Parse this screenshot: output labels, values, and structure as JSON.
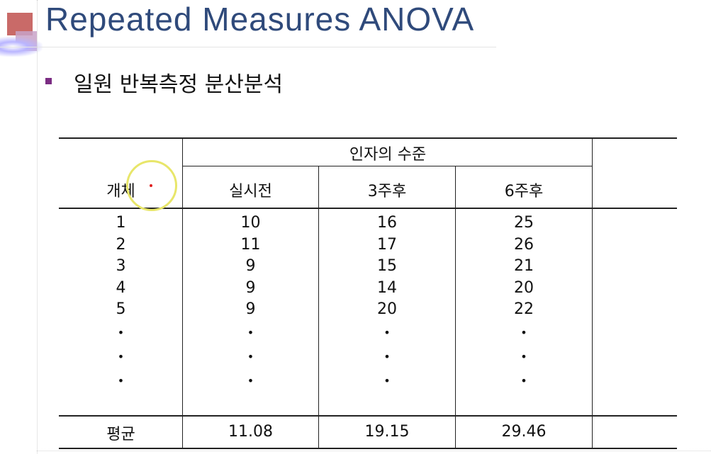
{
  "slide": {
    "title": "Repeated Measures ANOVA",
    "bullet": "일원 반복측정 분산분석"
  },
  "table": {
    "header_subject": "개체",
    "header_factor": "인자의 수준",
    "levels": [
      "실시전",
      "3주후",
      "6주후"
    ],
    "subjects": [
      "1",
      "2",
      "3",
      "4",
      "5"
    ],
    "columns": [
      [
        "10",
        "11",
        "9",
        "9",
        "9"
      ],
      [
        "16",
        "17",
        "15",
        "14",
        "20"
      ],
      [
        "25",
        "26",
        "21",
        "20",
        "22"
      ]
    ],
    "ellipsis": "•",
    "mean_label": "평균",
    "means": [
      "11.08",
      "19.15",
      "29.46"
    ]
  }
}
